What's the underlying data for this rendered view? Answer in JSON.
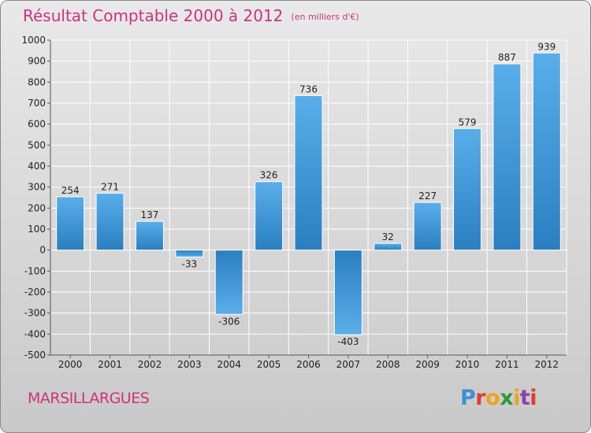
{
  "title": "Résultat Comptable 2000 à 2012",
  "unit_note": "(en milliers d'€)",
  "commune": "MARSILLARGUES",
  "logo_letters": [
    "P",
    "r",
    "o",
    "x",
    "i",
    "t",
    "i"
  ],
  "colors": {
    "title": "#cc3377",
    "bar_light": "#5aaeea",
    "bar_dark": "#2a7fc0",
    "grid": "#ffffff"
  },
  "chart_data": {
    "type": "bar",
    "title": "Résultat Comptable 2000 à 2012",
    "subtitle": "(en milliers d'€)",
    "xlabel": "",
    "ylabel": "",
    "categories": [
      "2000",
      "2001",
      "2002",
      "2003",
      "2004",
      "2005",
      "2006",
      "2007",
      "2008",
      "2009",
      "2010",
      "2011",
      "2012"
    ],
    "values": [
      254,
      271,
      137,
      -33,
      -306,
      326,
      736,
      -403,
      32,
      227,
      579,
      887,
      939
    ],
    "ylim": [
      -500,
      1000
    ],
    "yticks": [
      1000,
      900,
      800,
      700,
      600,
      500,
      400,
      300,
      200,
      100,
      0,
      -100,
      -200,
      -300,
      -400,
      -500
    ],
    "grid": true,
    "legend": "none"
  }
}
